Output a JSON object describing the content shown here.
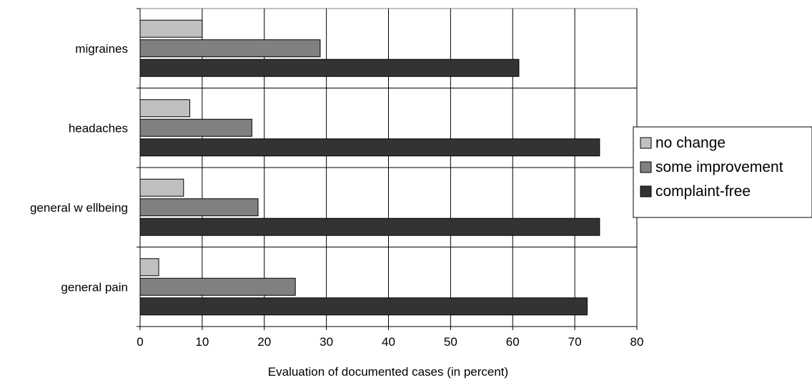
{
  "chart_data": {
    "type": "bar",
    "orientation": "horizontal",
    "categories": [
      "migraines",
      "headaches",
      "general w ellbeing",
      "general pain"
    ],
    "series": [
      {
        "name": "no change",
        "values": [
          10,
          8,
          7,
          3
        ],
        "color": "#c0c0c0"
      },
      {
        "name": "some improvement",
        "values": [
          29,
          18,
          19,
          25
        ],
        "color": "#808080"
      },
      {
        "name": "complaint-free",
        "values": [
          61,
          74,
          74,
          72
        ],
        "color": "#333333"
      }
    ],
    "title": "",
    "xlabel": "Evaluation of documented cases (in percent)",
    "ylabel": "",
    "xlim": [
      0,
      80
    ],
    "xticks": [
      "0",
      "10",
      "20",
      "30",
      "40",
      "50",
      "60",
      "70",
      "80"
    ],
    "grid": true,
    "legend_position": "right"
  }
}
